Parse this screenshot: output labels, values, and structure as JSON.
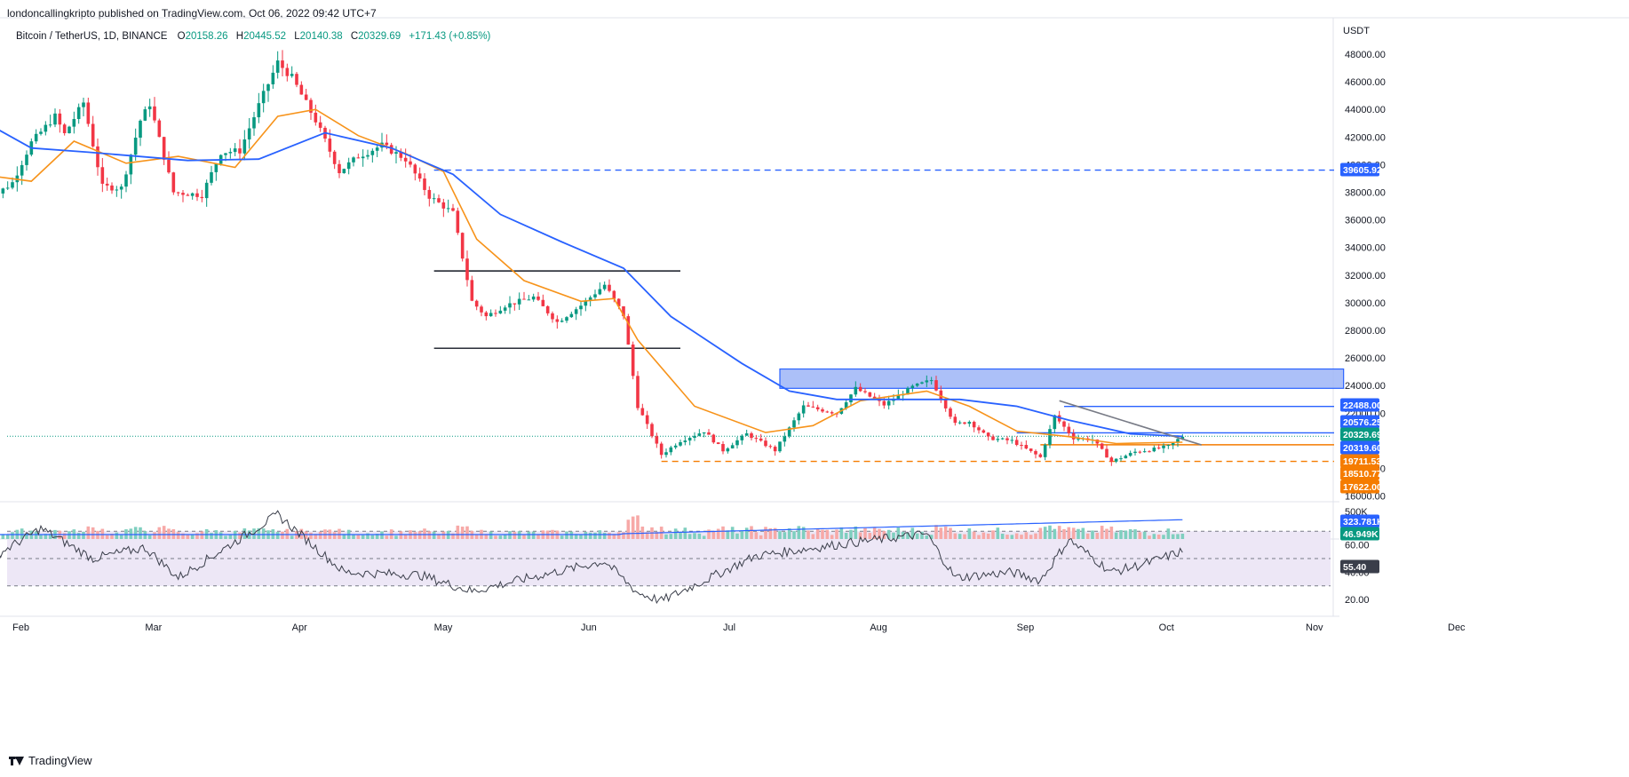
{
  "header": {
    "published_by": "londoncallingkripto published on TradingView.com, Oct 06, 2022 09:42 UTC+7"
  },
  "legend": {
    "symbol": "Bitcoin / TetherUS, 1D, BINANCE",
    "open_label": "O",
    "open": "20158.26",
    "high_label": "H",
    "high": "20445.52",
    "low_label": "L",
    "low": "20140.38",
    "close_label": "C",
    "close": "20329.69",
    "change": "+171.43 (+0.85%)"
  },
  "axis": {
    "currency": "USDT",
    "price_ticks": [
      "48000.00",
      "46000.00",
      "44000.00",
      "42000.00",
      "40000.00",
      "38000.00",
      "36000.00",
      "34000.00",
      "32000.00",
      "30000.00",
      "28000.00",
      "26000.00",
      "24000.00",
      "22000.00",
      "18000.00",
      "16000.00"
    ],
    "month_labels": [
      "Feb",
      "Mar",
      "Apr",
      "May",
      "Jun",
      "Jul",
      "Aug",
      "Sep",
      "Oct",
      "Nov",
      "Dec"
    ],
    "volume_tick": "500K",
    "rsi_ticks": [
      "40.00",
      "20.00"
    ],
    "rsi_partial_tick": "60.00"
  },
  "price_badges": [
    {
      "label": "39605.92",
      "value": 39605.92,
      "color": "#2962ff"
    },
    {
      "label": "22488.00",
      "value": 22488.0,
      "color": "#2962ff"
    },
    {
      "label": "20576.25",
      "value": 20576.25,
      "color": "#2962ff"
    },
    {
      "label": "20329.69",
      "value": 20329.69,
      "color": "#089981"
    },
    {
      "label": "20319.60",
      "value": 20319.6,
      "color": "#2962ff"
    },
    {
      "label": "19711.53",
      "value": 19711.53,
      "color": "#f57c00"
    },
    {
      "label": "18510.77",
      "value": 18510.77,
      "color": "#f57c00"
    },
    {
      "label": "17622.00",
      "value": 17622.0,
      "color": "#f57c00"
    }
  ],
  "volume_badges": [
    {
      "label": "323.781K",
      "color": "#2962ff"
    },
    {
      "label": "46.949K",
      "color": "#089981"
    }
  ],
  "rsi_badge": {
    "label": "55.40",
    "color": "#3a3e4a"
  },
  "footer": {
    "brand": "TradingView"
  },
  "colors": {
    "up": "#089981",
    "down": "#f23645",
    "ema_fast": "#f7931a",
    "ema_slow": "#2962ff",
    "zone_fill": "#9db5f7",
    "rsi_band": "#ede7f6",
    "grid_text": "#131722"
  },
  "chart_data": {
    "type": "candlestick",
    "instrument": "Bitcoin / TetherUS",
    "timeframe": "1D",
    "exchange": "BINANCE",
    "x_range": [
      "2022-01-25",
      "2022-12-28"
    ],
    "ylim": [
      16000,
      49500
    ],
    "log_scale": false,
    "last": {
      "open": 20158.26,
      "high": 20445.52,
      "low": 20140.38,
      "close": 20329.69
    },
    "close_path": [
      [
        "2022-01-25",
        36900
      ],
      [
        "2022-01-28",
        37700
      ],
      [
        "2022-02-01",
        38700
      ],
      [
        "2022-02-05",
        41600
      ],
      [
        "2022-02-10",
        43500
      ],
      [
        "2022-02-12",
        42200
      ],
      [
        "2022-02-16",
        44500
      ],
      [
        "2022-02-20",
        38400
      ],
      [
        "2022-02-24",
        38300
      ],
      [
        "2022-02-28",
        43200
      ],
      [
        "2022-03-02",
        44400
      ],
      [
        "2022-03-07",
        38000
      ],
      [
        "2022-03-13",
        37800
      ],
      [
        "2022-03-17",
        40900
      ],
      [
        "2022-03-21",
        41000
      ],
      [
        "2022-03-25",
        44300
      ],
      [
        "2022-03-29",
        47400
      ],
      [
        "2022-04-01",
        46300
      ],
      [
        "2022-04-06",
        43200
      ],
      [
        "2022-04-11",
        39500
      ],
      [
        "2022-04-15",
        40600
      ],
      [
        "2022-04-20",
        41400
      ],
      [
        "2022-04-25",
        40400
      ],
      [
        "2022-04-30",
        37700
      ],
      [
        "2022-05-05",
        36500
      ],
      [
        "2022-05-09",
        30100
      ],
      [
        "2022-05-12",
        29000
      ],
      [
        "2022-05-16",
        29800
      ],
      [
        "2022-05-22",
        30400
      ],
      [
        "2022-05-27",
        28600
      ],
      [
        "2022-06-01",
        29800
      ],
      [
        "2022-06-06",
        31300
      ],
      [
        "2022-06-10",
        29100
      ],
      [
        "2022-06-13",
        22500
      ],
      [
        "2022-06-18",
        19000
      ],
      [
        "2022-06-22",
        20000
      ],
      [
        "2022-06-27",
        20700
      ],
      [
        "2022-07-01",
        19300
      ],
      [
        "2022-07-06",
        20500
      ],
      [
        "2022-07-12",
        19300
      ],
      [
        "2022-07-18",
        22500
      ],
      [
        "2022-07-25",
        22000
      ],
      [
        "2022-07-29",
        23800
      ],
      [
        "2022-08-04",
        22600
      ],
      [
        "2022-08-10",
        23900
      ],
      [
        "2022-08-14",
        24400
      ],
      [
        "2022-08-19",
        21200
      ],
      [
        "2022-08-22",
        21400
      ],
      [
        "2022-08-26",
        20200
      ],
      [
        "2022-08-31",
        20000
      ],
      [
        "2022-09-06",
        18800
      ],
      [
        "2022-09-09",
        21800
      ],
      [
        "2022-09-13",
        20200
      ],
      [
        "2022-09-17",
        20100
      ],
      [
        "2022-09-21",
        18500
      ],
      [
        "2022-09-26",
        19200
      ],
      [
        "2022-09-30",
        19400
      ],
      [
        "2022-10-03",
        19600
      ],
      [
        "2022-10-06",
        20329.69
      ]
    ],
    "ema_fast_path": [
      [
        "2022-01-25",
        39300
      ],
      [
        "2022-02-05",
        38800
      ],
      [
        "2022-02-14",
        41700
      ],
      [
        "2022-02-25",
        40100
      ],
      [
        "2022-03-08",
        40600
      ],
      [
        "2022-03-20",
        39800
      ],
      [
        "2022-03-29",
        43500
      ],
      [
        "2022-04-06",
        44000
      ],
      [
        "2022-04-15",
        42100
      ],
      [
        "2022-04-25",
        40800
      ],
      [
        "2022-05-03",
        39500
      ],
      [
        "2022-05-10",
        34600
      ],
      [
        "2022-05-20",
        31600
      ],
      [
        "2022-06-01",
        30100
      ],
      [
        "2022-06-08",
        30300
      ],
      [
        "2022-06-13",
        27300
      ],
      [
        "2022-06-25",
        22500
      ],
      [
        "2022-07-10",
        20600
      ],
      [
        "2022-07-20",
        21100
      ],
      [
        "2022-07-30",
        22900
      ],
      [
        "2022-08-13",
        23600
      ],
      [
        "2022-08-22",
        22500
      ],
      [
        "2022-09-01",
        20700
      ],
      [
        "2022-09-12",
        20300
      ],
      [
        "2022-09-22",
        19800
      ],
      [
        "2022-10-06",
        19900
      ]
    ],
    "ema_slow_path": [
      [
        "2022-01-25",
        43300
      ],
      [
        "2022-02-05",
        41200
      ],
      [
        "2022-02-17",
        40900
      ],
      [
        "2022-03-10",
        40300
      ],
      [
        "2022-03-25",
        40400
      ],
      [
        "2022-04-08",
        42300
      ],
      [
        "2022-04-22",
        41200
      ],
      [
        "2022-05-05",
        39300
      ],
      [
        "2022-05-15",
        36400
      ],
      [
        "2022-05-28",
        34400
      ],
      [
        "2022-06-10",
        32500
      ],
      [
        "2022-06-20",
        29000
      ],
      [
        "2022-07-05",
        25600
      ],
      [
        "2022-07-15",
        23600
      ],
      [
        "2022-07-25",
        23000
      ],
      [
        "2022-08-10",
        23000
      ],
      [
        "2022-08-20",
        23000
      ],
      [
        "2022-09-01",
        22500
      ],
      [
        "2022-09-12",
        21500
      ],
      [
        "2022-09-25",
        20500
      ],
      [
        "2022-10-06",
        20319.6
      ]
    ],
    "horizontal_levels": [
      {
        "value": 39605.92,
        "style": "dashed",
        "color": "#2962ff",
        "from": "2022-05-01"
      },
      {
        "value": 32300,
        "style": "solid",
        "color": "#131722",
        "from": "2022-05-01",
        "to": "2022-06-22"
      },
      {
        "value": 26700,
        "style": "solid",
        "color": "#131722",
        "from": "2022-05-01",
        "to": "2022-06-22"
      },
      {
        "value": 22488.0,
        "style": "solid",
        "color": "#2962ff",
        "from": "2022-09-11"
      },
      {
        "value": 20576.25,
        "style": "solid",
        "color": "#2962ff",
        "from": "2022-09-01"
      },
      {
        "value": 19711.53,
        "style": "solid",
        "color": "#f57c00",
        "from": "2022-09-06"
      },
      {
        "value": 18510.77,
        "style": "dashed",
        "color": "#f57c00",
        "from": "2022-06-18"
      }
    ],
    "zones": [
      {
        "top": 25200,
        "bottom": 23800,
        "from": "2022-07-13",
        "to": "2022-11-09",
        "color": "#2962ff"
      }
    ],
    "trendlines": [
      {
        "points": [
          [
            "2022-09-10",
            22900
          ],
          [
            "2022-10-10",
            19700
          ]
        ],
        "color": "#787b86"
      }
    ],
    "volume": {
      "series": [
        {
          "name": "volume",
          "unit": "K",
          "approx_range": [
            20,
            560
          ]
        },
        {
          "name": "volume_ma",
          "last": "323.781K"
        }
      ],
      "last": "46.949K"
    },
    "rsi": {
      "last": 55.4,
      "levels": [
        70,
        50,
        30
      ],
      "path": [
        [
          "2022-01-25",
          45
        ],
        [
          "2022-02-07",
          72
        ],
        [
          "2022-02-18",
          50
        ],
        [
          "2022-03-01",
          58
        ],
        [
          "2022-03-08",
          36
        ],
        [
          "2022-03-29",
          82
        ],
        [
          "2022-04-12",
          40
        ],
        [
          "2022-04-28",
          38
        ],
        [
          "2022-05-09",
          26
        ],
        [
          "2022-05-20",
          35
        ],
        [
          "2022-06-06",
          48
        ],
        [
          "2022-06-13",
          25
        ],
        [
          "2022-06-18",
          19
        ],
        [
          "2022-07-08",
          52
        ],
        [
          "2022-07-29",
          62
        ],
        [
          "2022-08-13",
          68
        ],
        [
          "2022-08-19",
          36
        ],
        [
          "2022-08-31",
          40
        ],
        [
          "2022-09-06",
          34
        ],
        [
          "2022-09-12",
          64
        ],
        [
          "2022-09-21",
          40
        ],
        [
          "2022-09-28",
          46
        ],
        [
          "2022-10-06",
          55.4
        ]
      ]
    }
  }
}
